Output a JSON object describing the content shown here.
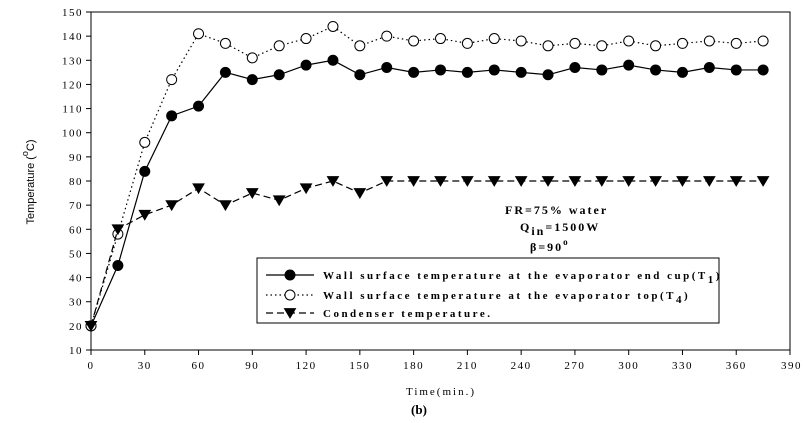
{
  "chart_data": {
    "type": "line",
    "xlabel": "Time(min.)",
    "ylabel": "Temperature",
    "ylabel_unit_pre": "(",
    "ylabel_unit_sup": "o",
    "ylabel_unit_post": "C)",
    "xlim": [
      0,
      390
    ],
    "ylim": [
      10,
      150
    ],
    "x_ticks": [
      0,
      30,
      60,
      90,
      120,
      150,
      180,
      210,
      240,
      270,
      300,
      330,
      360,
      390
    ],
    "y_ticks": [
      10,
      20,
      30,
      40,
      50,
      60,
      70,
      80,
      90,
      100,
      110,
      120,
      130,
      140,
      150
    ],
    "grid": false,
    "legend_position": "lower-center",
    "subtitle": "(b)",
    "annotations": {
      "fr": "FR=75% water",
      "qin_pre": "Q",
      "qin_sub": "in",
      "qin_post": "=1500W",
      "beta": "β=90",
      "beta_sup": "o"
    },
    "series": [
      {
        "name_pre": "Wall surface temperature at the evaporator end cup(T",
        "name_sub": "1",
        "name_post": ")",
        "marker": "filled-circle",
        "line": "solid",
        "x": [
          0,
          15,
          30,
          45,
          60,
          75,
          90,
          105,
          120,
          135,
          150,
          165,
          180,
          195,
          210,
          225,
          240,
          255,
          270,
          285,
          300,
          315,
          330,
          345,
          360,
          375
        ],
        "y": [
          20,
          45,
          84,
          107,
          111,
          125,
          122,
          124,
          128,
          130,
          124,
          127,
          125,
          126,
          125,
          126,
          125,
          124,
          127,
          126,
          128,
          126,
          125,
          127,
          126,
          126
        ]
      },
      {
        "name_pre": "Wall surface temperature at the evaporator top(T",
        "name_sub": "4",
        "name_post": ")",
        "marker": "open-circle",
        "line": "dotted",
        "x": [
          0,
          15,
          30,
          45,
          60,
          75,
          90,
          105,
          120,
          135,
          150,
          165,
          180,
          195,
          210,
          225,
          240,
          255,
          270,
          285,
          300,
          315,
          330,
          345,
          360,
          375
        ],
        "y": [
          20,
          58,
          96,
          122,
          141,
          137,
          131,
          136,
          139,
          144,
          136,
          140,
          138,
          139,
          137,
          139,
          138,
          136,
          137,
          136,
          138,
          136,
          137,
          138,
          137,
          138
        ]
      },
      {
        "name_pre": "Condenser temperature.",
        "name_sub": "",
        "name_post": "",
        "marker": "filled-down-triangle",
        "line": "dashed",
        "x": [
          0,
          15,
          30,
          45,
          60,
          75,
          90,
          105,
          120,
          135,
          150,
          165,
          180,
          195,
          210,
          225,
          240,
          255,
          270,
          285,
          300,
          315,
          330,
          345,
          360,
          375
        ],
        "y": [
          20,
          60,
          66,
          70,
          77,
          70,
          75,
          72,
          77,
          80,
          75,
          80,
          80,
          80,
          80,
          80,
          80,
          80,
          80,
          80,
          80,
          80,
          80,
          80,
          80,
          80
        ]
      }
    ]
  }
}
